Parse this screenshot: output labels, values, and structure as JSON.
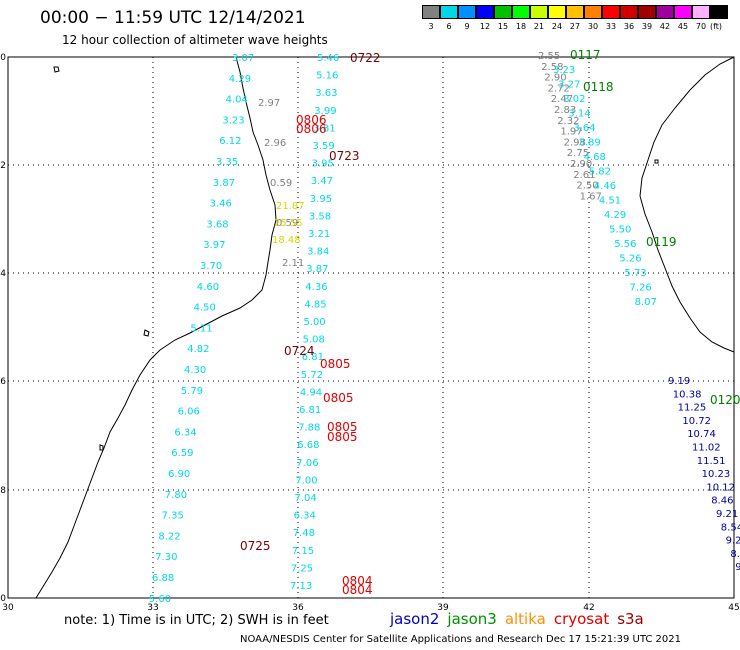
{
  "header": {
    "time_range": "00:00 − 11:59 UTC 12/14/2021",
    "subtitle": "12 hour collection of altimeter wave heights"
  },
  "legend": {
    "unit": "(ft)",
    "items": [
      {
        "label": "3",
        "color": "#808080"
      },
      {
        "label": "6",
        "color": "#00d8e8"
      },
      {
        "label": "9",
        "color": "#0090ff"
      },
      {
        "label": "12",
        "color": "#0000ff"
      },
      {
        "label": "15",
        "color": "#00c000"
      },
      {
        "label": "18",
        "color": "#00ff00"
      },
      {
        "label": "21",
        "color": "#c8ff00"
      },
      {
        "label": "24",
        "color": "#ffff00"
      },
      {
        "label": "27",
        "color": "#ffc000"
      },
      {
        "label": "30",
        "color": "#ff8000"
      },
      {
        "label": "33",
        "color": "#ff0000"
      },
      {
        "label": "36",
        "color": "#d00000"
      },
      {
        "label": "39",
        "color": "#a00000"
      },
      {
        "label": "42",
        "color": "#a000a0"
      },
      {
        "label": "45",
        "color": "#ff00ff"
      },
      {
        "label": "70",
        "color": "#ffb0ff"
      },
      {
        "label": "",
        "color": "#000000"
      }
    ]
  },
  "axes": {
    "lat_labels": [
      "-20",
      "-22",
      "-24",
      "-26",
      "-28",
      "-30"
    ],
    "lon_labels": [
      "30",
      "33",
      "36",
      "39",
      "42",
      "45"
    ]
  },
  "coast_labels": {
    "a": "0722",
    "b": "0723",
    "c": "0724",
    "d": "0725"
  },
  "tracks": [
    {
      "id": "t1",
      "color": "#808080",
      "values": [
        "2.55",
        "2.58",
        "2.90",
        "2.72",
        "2.47",
        "2.83",
        "2.32",
        "1.97",
        "2.98",
        "2.75",
        "2.90",
        "2.61",
        "2.50",
        "1.67"
      ]
    },
    {
      "id": "t1c",
      "color": "#00d8e8",
      "values": [
        "3.23",
        "3.27",
        "3.02",
        "3.14",
        "3.64",
        "3.89",
        "4.68",
        "5.82",
        "4.46",
        "4.51",
        "4.29",
        "5.50",
        "5.56",
        "5.26",
        "5.73",
        "7.26",
        "8.07"
      ]
    },
    {
      "id": "t1b",
      "color": "#0000a0",
      "values": [
        "9.19",
        "10.38",
        "11.25",
        "10.72",
        "10.74",
        "11.02",
        "11.51",
        "10.23",
        "10.12",
        "8.46",
        "9.21",
        "8.54",
        "9.2",
        "8.",
        "9.",
        "9"
      ]
    },
    {
      "id": "t2",
      "color": "#00d8e8",
      "values": [
        "3.07",
        "4.29",
        "4.04",
        "3.23",
        "6.12",
        "3.35",
        "3.87",
        "3.46",
        "3.68",
        "3.97",
        "3.70",
        "4.60",
        "4.50",
        "5.11",
        "4.82",
        "4.30",
        "5.79",
        "6.06",
        "6.34",
        "6.59",
        "6.90",
        "7.80",
        "7.35",
        "8.22",
        "7.30",
        "6.88",
        "5.60"
      ]
    },
    {
      "id": "t2g",
      "color": "#808080",
      "values": [
        "2.97",
        "2.96",
        "0.59",
        "0.59",
        "2.11"
      ]
    },
    {
      "id": "t3",
      "color": "#00d8e8",
      "values": [
        "5.46",
        "5.16",
        "3.63",
        "3.99",
        "3.81",
        "3.59",
        "3.95",
        "3.47",
        "3.95",
        "3.58",
        "3.21",
        "3.84",
        "3.87",
        "4.36",
        "4.85",
        "5.00",
        "5.08",
        "6.81",
        "5.72",
        "4.94",
        "6.81",
        "7.88",
        "6.68",
        "7.06",
        "7.00",
        "7.04",
        "6.34",
        "7.48",
        "7.15",
        "7.25",
        "7.13"
      ]
    },
    {
      "id": "t3y",
      "color": "#d8d800",
      "values": [
        "21.87",
        "25.55",
        "18.48"
      ]
    }
  ],
  "time_labels": [
    {
      "text": "0117",
      "color": "#008000"
    },
    {
      "text": "0118",
      "color": "#008000"
    },
    {
      "text": "0119",
      "color": "#008000"
    },
    {
      "text": "0120",
      "color": "#008000"
    },
    {
      "text": "0722",
      "color": "#800000"
    },
    {
      "text": "0723",
      "color": "#800000"
    },
    {
      "text": "0724",
      "color": "#800000"
    },
    {
      "text": "0725",
      "color": "#800000"
    },
    {
      "text": "0805",
      "color": "#e00000"
    },
    {
      "text": "0806",
      "color": "#e00000"
    },
    {
      "text": "0804",
      "color": "#e00000"
    }
  ],
  "footer": {
    "note": "note: 1) Time is in UTC; 2) SWH is in feet",
    "satellites": [
      {
        "name": "jason2",
        "color": "#0000c0"
      },
      {
        "name": "jason3",
        "color": "#009000"
      },
      {
        "name": "altika",
        "color": "#ff9000"
      },
      {
        "name": "cryosat",
        "color": "#e00000"
      },
      {
        "name": "s3a",
        "color": "#a00000"
      }
    ],
    "credit": "NOAA/NESDIS Center for Satellite Applications and Research   Dec 17 15:21:39 UTC 2021"
  }
}
